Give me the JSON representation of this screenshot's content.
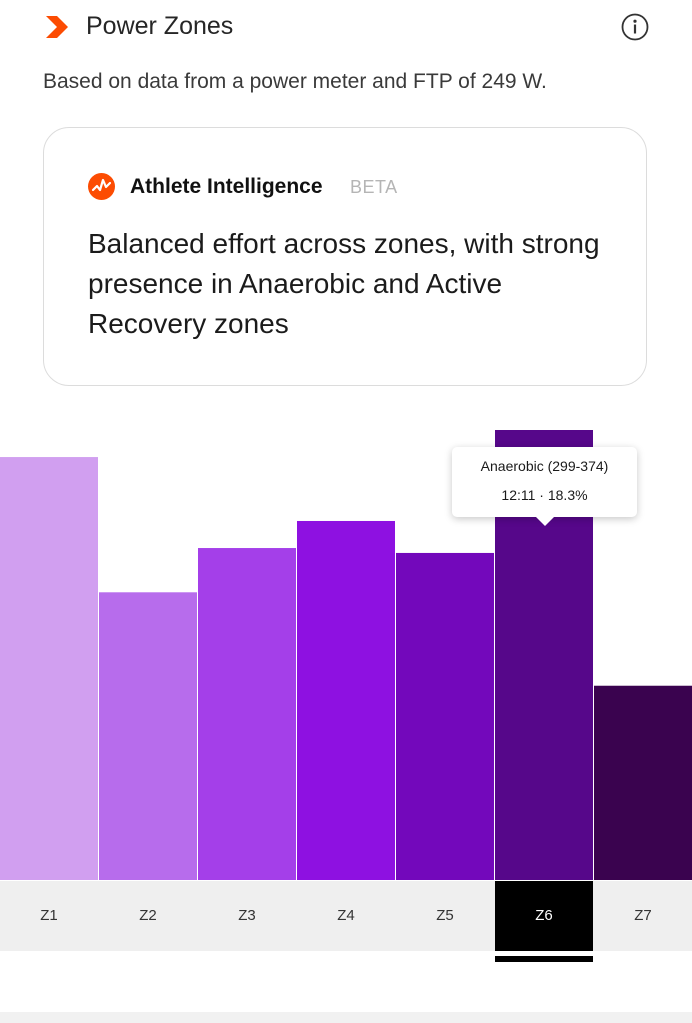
{
  "header": {
    "title": "Power Zones",
    "subtitle": "Based on data from a power meter and FTP of 249 W.",
    "brand_icon": "chevron-logo-icon",
    "info_icon": "info-icon",
    "brand_color": "#fc4c02"
  },
  "ai_card": {
    "name": "Athlete Intelligence",
    "badge": "BETA",
    "summary": "Balanced effort across zones, with strong presence in Anaerobic and Active Recovery zones",
    "logo_icon": "athlete-intelligence-logo-icon"
  },
  "tooltip": {
    "title": "Anaerobic (299-374)",
    "value": "12:11 · 18.3%"
  },
  "tabs": [
    {
      "label": "Z1"
    },
    {
      "label": "Z2"
    },
    {
      "label": "Z3"
    },
    {
      "label": "Z4"
    },
    {
      "label": "Z5"
    },
    {
      "label": "Z6"
    },
    {
      "label": "Z7"
    }
  ],
  "selected_tab": "Z6",
  "chart_data": {
    "type": "bar",
    "categories": [
      "Z1",
      "Z2",
      "Z3",
      "Z4",
      "Z5",
      "Z6",
      "Z7"
    ],
    "values": [
      17.2,
      11.7,
      13.5,
      14.6,
      13.3,
      18.3,
      7.9
    ],
    "unit": "%",
    "colors": [
      "#d19ff0",
      "#b76cec",
      "#a43fe9",
      "#8e11e1",
      "#7308bb",
      "#56078a",
      "#3a034f"
    ],
    "selected": "Z6"
  }
}
